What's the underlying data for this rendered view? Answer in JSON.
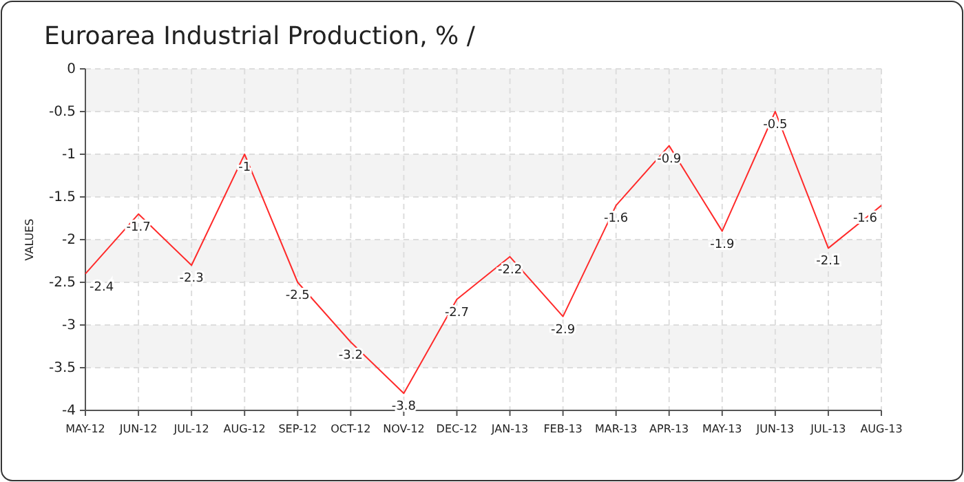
{
  "chart_data": {
    "type": "line",
    "title": "Euroarea Industrial Production, %  /",
    "ylabel": "VALUES",
    "categories": [
      "MAY-12",
      "JUN-12",
      "JUL-12",
      "AUG-12",
      "SEP-12",
      "OCT-12",
      "NOV-12",
      "DEC-12",
      "JAN-13",
      "FEB-13",
      "MAR-13",
      "APR-13",
      "MAY-13",
      "JUN-13",
      "JUL-13",
      "AUG-13"
    ],
    "series": [
      {
        "color": "#ff2a2a",
        "values": [
          -2.4,
          -1.7,
          -2.3,
          -1,
          -2.5,
          -3.2,
          -3.8,
          -2.7,
          -2.2,
          -2.9,
          -1.6,
          -0.9,
          -1.9,
          -0.5,
          -2.1,
          -1.6
        ]
      }
    ],
    "ylim": [
      -4,
      0
    ],
    "yticks": [
      -4,
      -3.5,
      -3,
      -2.5,
      -2,
      -1.5,
      -1,
      -0.5,
      0
    ],
    "grid": true,
    "data_labels": true,
    "marker": "none",
    "line_style": "solid"
  }
}
